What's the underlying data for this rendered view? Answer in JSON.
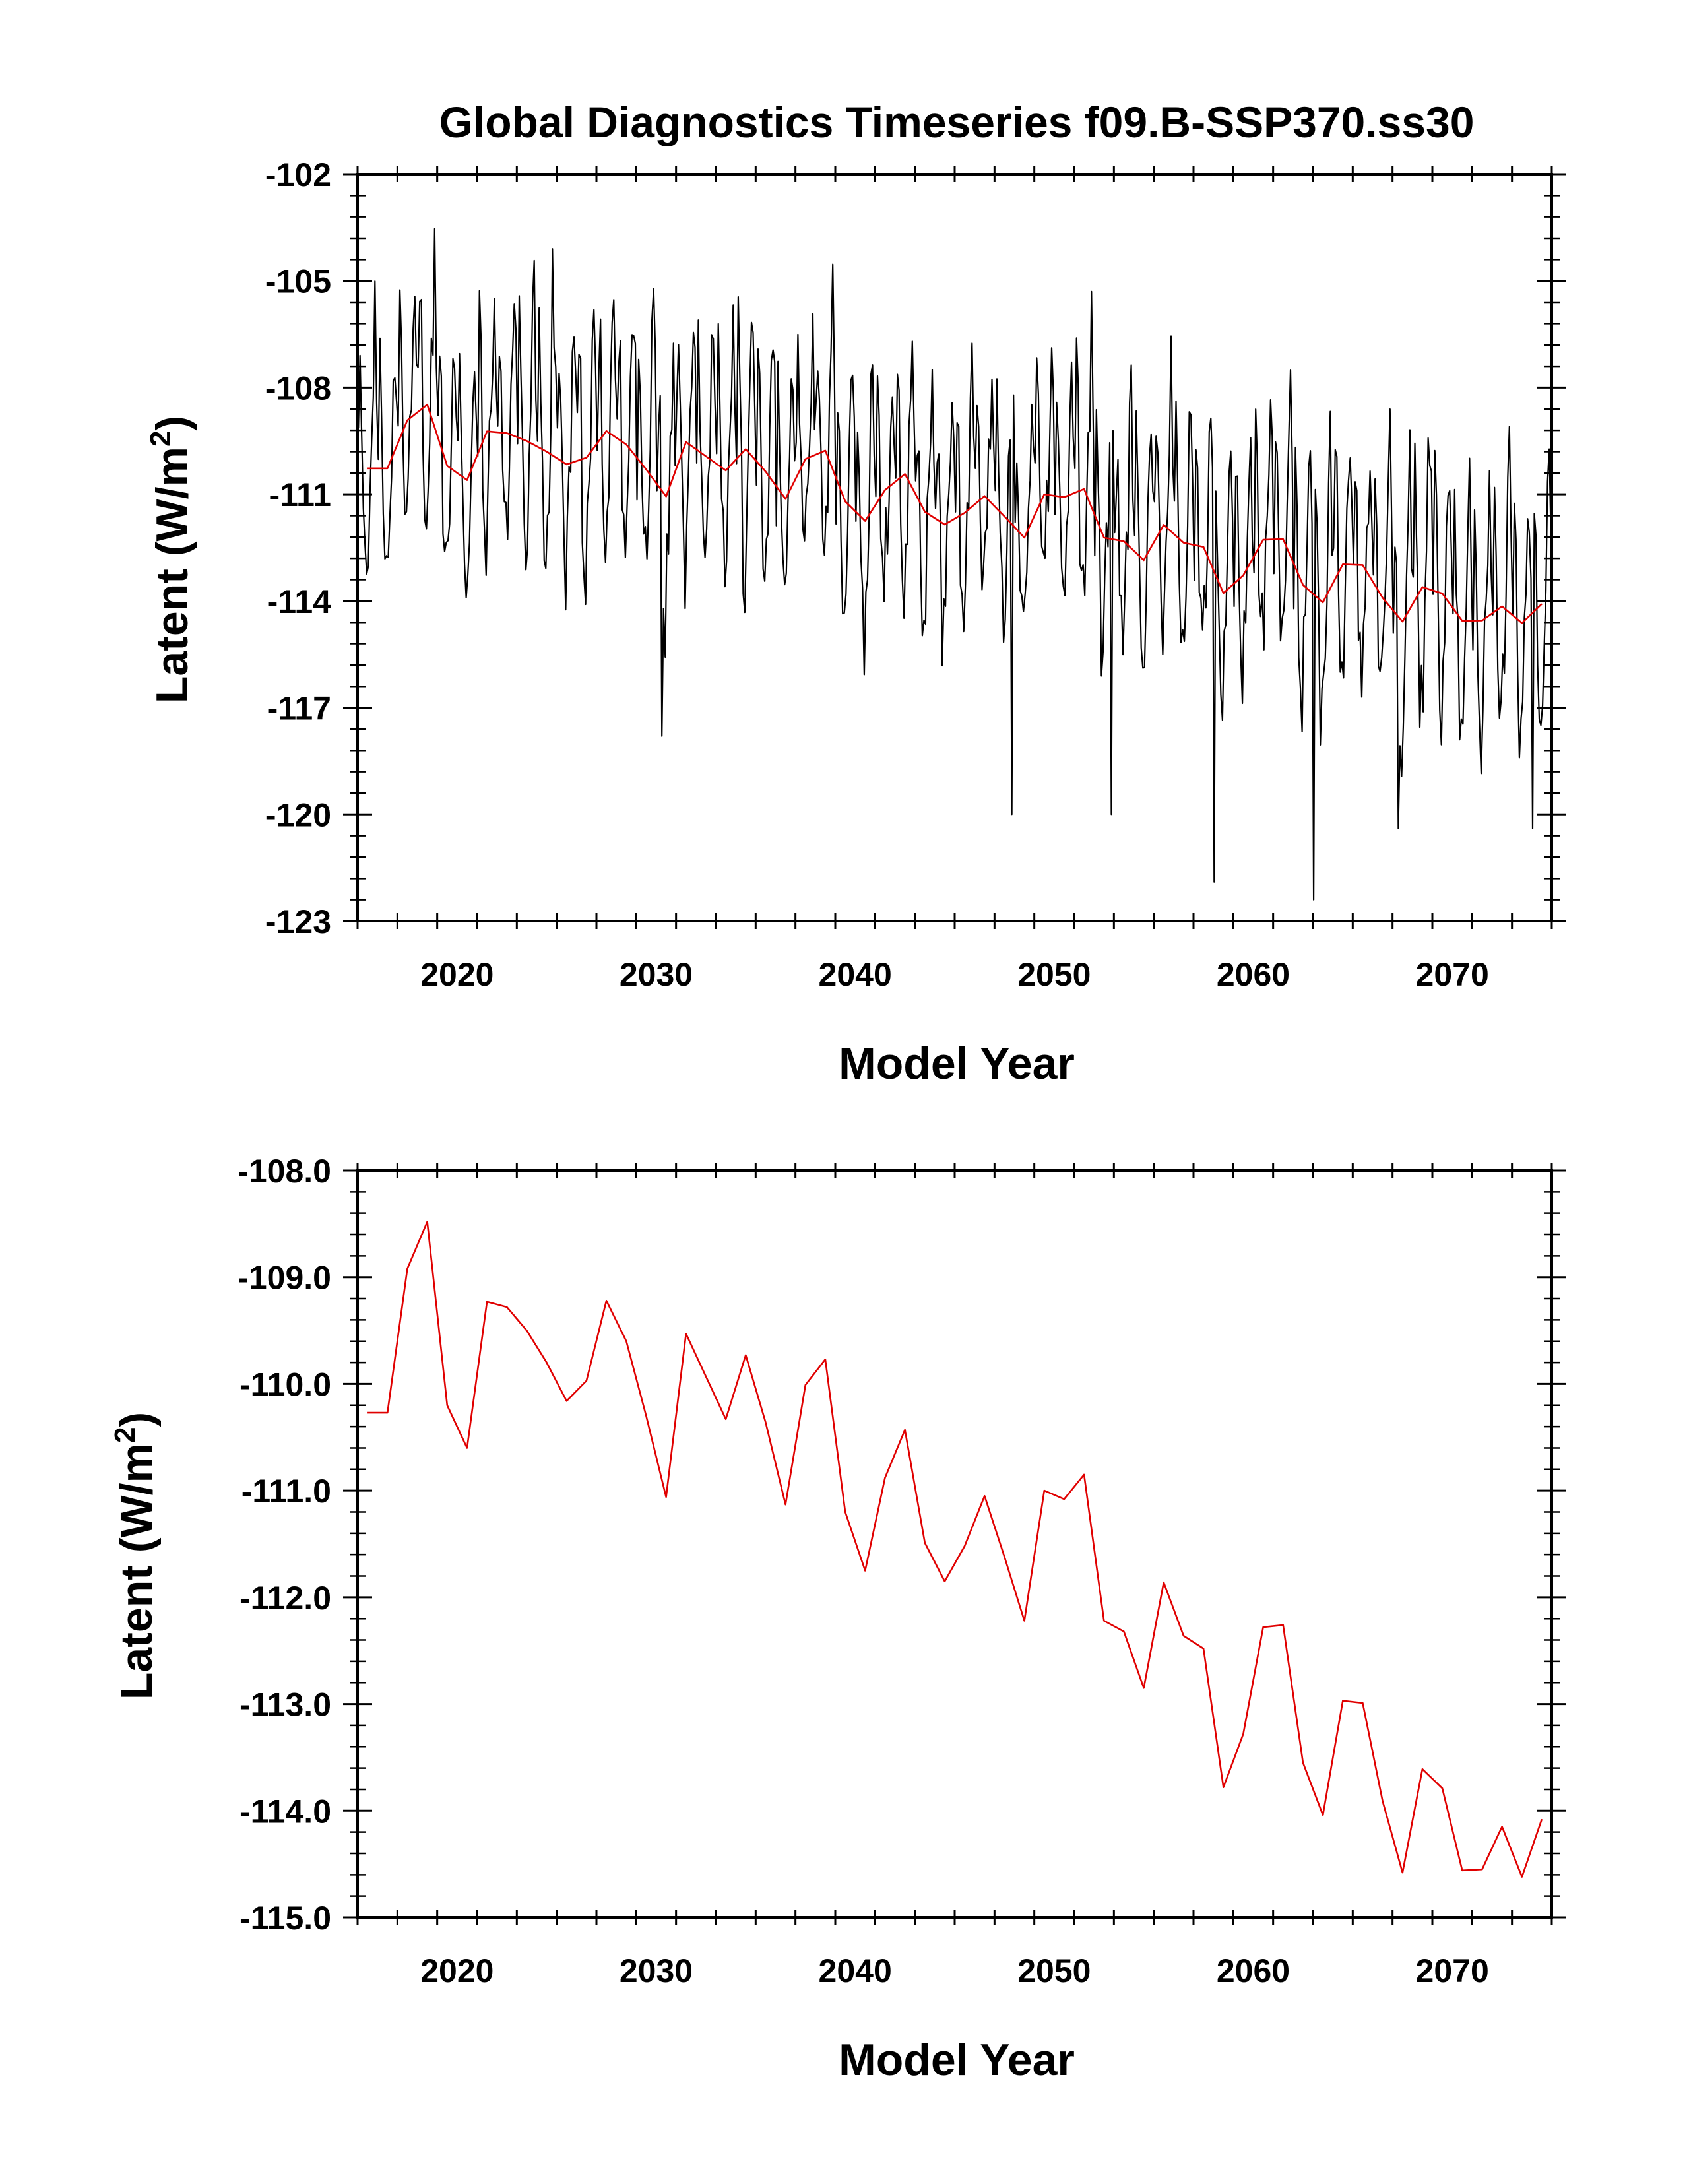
{
  "chart_data": [
    {
      "type": "line",
      "title": "Global Diagnostics Timeseries f09.B-SSP370.ss30",
      "xlabel": "Model Year",
      "ylabel": "Latent (W/m2)",
      "ylabel_main": "Latent (W/m",
      "ylabel_sup": "2",
      "ylabel_close": ")",
      "xlim": [
        2015,
        2075
      ],
      "ylim": [
        -123,
        -102
      ],
      "x_ticks": [
        2020,
        2030,
        2040,
        2050,
        2060,
        2070
      ],
      "x_tick_labels": [
        "2020",
        "2030",
        "2040",
        "2050",
        "2060",
        "2070"
      ],
      "y_ticks": [
        -123,
        -120,
        -117,
        -114,
        -111,
        -108,
        -105,
        -102
      ],
      "y_tick_labels": [
        "-123",
        "-120",
        "-117",
        "-114",
        "-111",
        "-108",
        "-105",
        "-102"
      ],
      "grid": false,
      "series": [
        {
          "kind": "monthly",
          "color": "#000000",
          "x_start": 2015.04,
          "x_step": 0.08333,
          "climatology_offsets": [
            0.2,
            3.0,
            2.0,
            -1.0,
            -2.6,
            -2.9,
            -2.0,
            -0.7,
            0.8,
            2.6,
            4.0,
            2.0
          ],
          "notable_extremes": [
            {
              "x": 2024.8,
              "y": -104.1
            },
            {
              "x": 2030.3,
              "y": -117.8
            },
            {
              "x": 2047.9,
              "y": -120.0
            },
            {
              "x": 2052.9,
              "y": -120.0
            },
            {
              "x": 2058.0,
              "y": -121.9
            },
            {
              "x": 2063.0,
              "y": -122.4
            },
            {
              "x": 2067.3,
              "y": -120.4
            },
            {
              "x": 2074.0,
              "y": -120.4
            }
          ]
        },
        {
          "kind": "annual",
          "color": "#e00000",
          "x": [
            2015.5,
            2016.5,
            2017.5,
            2018.5,
            2019.5,
            2020.5,
            2021.5,
            2022.5,
            2023.5,
            2024.5,
            2025.5,
            2026.5,
            2027.5,
            2028.5,
            2029.5,
            2030.5,
            2031.5,
            2032.5,
            2033.5,
            2034.5,
            2035.5,
            2036.5,
            2037.5,
            2038.5,
            2039.5,
            2040.5,
            2041.5,
            2042.5,
            2043.5,
            2044.5,
            2045.5,
            2046.5,
            2047.5,
            2048.5,
            2049.5,
            2050.5,
            2051.5,
            2052.5,
            2053.5,
            2054.5,
            2055.5,
            2056.5,
            2057.5,
            2058.5,
            2059.5,
            2060.5,
            2061.5,
            2062.5,
            2063.5,
            2064.5,
            2065.5,
            2066.5,
            2067.5,
            2068.5,
            2069.5,
            2070.5,
            2071.5,
            2072.5,
            2073.5,
            2074.5
          ],
          "values": [
            -110.27,
            -110.27,
            -108.92,
            -108.48,
            -110.2,
            -110.6,
            -109.23,
            -109.28,
            -109.5,
            -109.8,
            -110.16,
            -109.97,
            -109.22,
            -109.6,
            -110.3,
            -111.06,
            -109.53,
            -109.93,
            -110.33,
            -109.73,
            -110.36,
            -111.13,
            -110.01,
            -109.77,
            -111.2,
            -111.75,
            -110.88,
            -110.43,
            -111.49,
            -111.85,
            -111.52,
            -111.05,
            -111.62,
            -112.22,
            -111.0,
            -111.08,
            -110.85,
            -112.22,
            -112.32,
            -112.85,
            -111.86,
            -112.36,
            -112.48,
            -113.78,
            -113.28,
            -112.28,
            -112.26,
            -113.55,
            -114.04,
            -112.97,
            -112.99,
            -113.91,
            -114.58,
            -113.61,
            -113.79,
            -114.56,
            -114.55,
            -114.15,
            -114.62,
            -114.08
          ]
        }
      ]
    },
    {
      "type": "line",
      "title": "",
      "xlabel": "Model Year",
      "ylabel": "Latent (W/m2)",
      "ylabel_main": "Latent (W/m",
      "ylabel_sup": "2",
      "ylabel_close": ")",
      "xlim": [
        2015,
        2075
      ],
      "ylim": [
        -115,
        -108
      ],
      "x_ticks": [
        2020,
        2030,
        2040,
        2050,
        2060,
        2070
      ],
      "x_tick_labels": [
        "2020",
        "2030",
        "2040",
        "2050",
        "2060",
        "2070"
      ],
      "y_ticks": [
        -115,
        -114,
        -113,
        -112,
        -111,
        -110,
        -109,
        -108
      ],
      "y_tick_labels": [
        "-115.0",
        "-114.0",
        "-113.0",
        "-112.0",
        "-111.0",
        "-110.0",
        "-109.0",
        "-108.0"
      ],
      "grid": false,
      "series": [
        {
          "kind": "annual",
          "color": "#e00000",
          "x": [
            2015.5,
            2016.5,
            2017.5,
            2018.5,
            2019.5,
            2020.5,
            2021.5,
            2022.5,
            2023.5,
            2024.5,
            2025.5,
            2026.5,
            2027.5,
            2028.5,
            2029.5,
            2030.5,
            2031.5,
            2032.5,
            2033.5,
            2034.5,
            2035.5,
            2036.5,
            2037.5,
            2038.5,
            2039.5,
            2040.5,
            2041.5,
            2042.5,
            2043.5,
            2044.5,
            2045.5,
            2046.5,
            2047.5,
            2048.5,
            2049.5,
            2050.5,
            2051.5,
            2052.5,
            2053.5,
            2054.5,
            2055.5,
            2056.5,
            2057.5,
            2058.5,
            2059.5,
            2060.5,
            2061.5,
            2062.5,
            2063.5,
            2064.5,
            2065.5,
            2066.5,
            2067.5,
            2068.5,
            2069.5,
            2070.5,
            2071.5,
            2072.5,
            2073.5,
            2074.5
          ],
          "values": [
            -110.27,
            -110.27,
            -108.92,
            -108.48,
            -110.2,
            -110.6,
            -109.23,
            -109.28,
            -109.5,
            -109.8,
            -110.16,
            -109.97,
            -109.22,
            -109.6,
            -110.3,
            -111.06,
            -109.53,
            -109.93,
            -110.33,
            -109.73,
            -110.36,
            -111.13,
            -110.01,
            -109.77,
            -111.2,
            -111.75,
            -110.88,
            -110.43,
            -111.49,
            -111.85,
            -111.52,
            -111.05,
            -111.62,
            -112.22,
            -111.0,
            -111.08,
            -110.85,
            -112.22,
            -112.32,
            -112.85,
            -111.86,
            -112.36,
            -112.48,
            -113.78,
            -113.28,
            -112.28,
            -112.26,
            -113.55,
            -114.04,
            -112.97,
            -112.99,
            -113.91,
            -114.58,
            -113.61,
            -113.79,
            -114.56,
            -114.55,
            -114.15,
            -114.62,
            -114.08
          ]
        }
      ]
    }
  ]
}
